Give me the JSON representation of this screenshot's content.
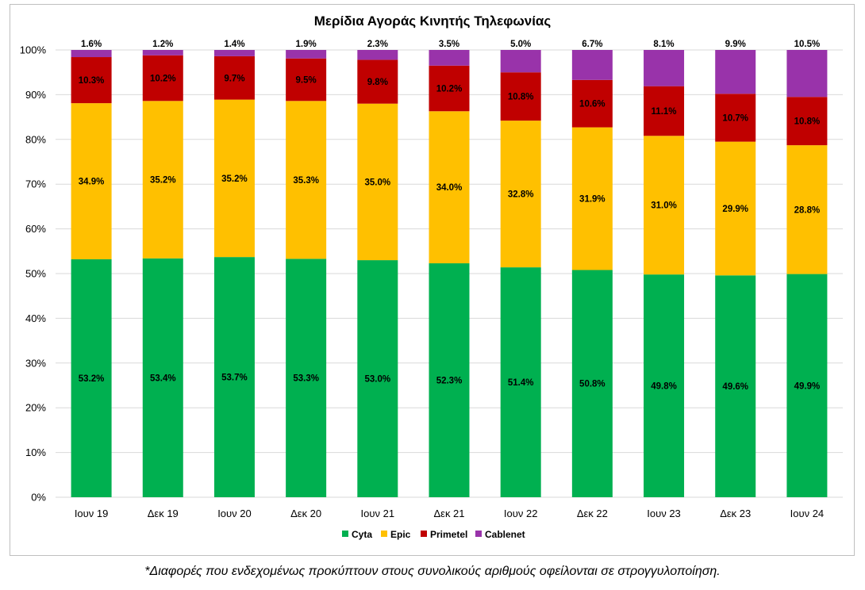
{
  "chart_data": {
    "type": "bar",
    "stacked": true,
    "title": "Μερίδια Αγοράς Κινητής Τηλεφωνίας",
    "xlabel": "",
    "ylabel": "",
    "ylim": [
      0,
      100
    ],
    "grid": true,
    "legend_position": "bottom",
    "y_ticks": [
      "0%",
      "10%",
      "20%",
      "30%",
      "40%",
      "50%",
      "60%",
      "70%",
      "80%",
      "90%",
      "100%"
    ],
    "categories": [
      "Ιουν 19",
      "Δεκ 19",
      "Ιουν 20",
      "Δεκ 20",
      "Ιουν 21",
      "Δεκ 21",
      "Ιουν 22",
      "Δεκ 22",
      "Ιουν 23",
      "Δεκ 23",
      "Ιουν 24"
    ],
    "series": [
      {
        "name": "Cyta",
        "color": "#00b050",
        "values": [
          53.2,
          53.4,
          53.7,
          53.3,
          53.0,
          52.3,
          51.4,
          50.8,
          49.8,
          49.6,
          49.9
        ],
        "labels": [
          "53.2%",
          "53.4%",
          "53.7%",
          "53.3%",
          "53.0%",
          "52.3%",
          "51.4%",
          "50.8%",
          "49.8%",
          "49.6%",
          "49.9%"
        ]
      },
      {
        "name": "Epic",
        "color": "#ffc000",
        "values": [
          34.9,
          35.2,
          35.2,
          35.3,
          35.0,
          34.0,
          32.8,
          31.9,
          31.0,
          29.9,
          28.8
        ],
        "labels": [
          "34.9%",
          "35.2%",
          "35.2%",
          "35.3%",
          "35.0%",
          "34.0%",
          "32.8%",
          "31.9%",
          "31.0%",
          "29.9%",
          "28.8%"
        ]
      },
      {
        "name": "Primetel",
        "color": "#c00000",
        "values": [
          10.3,
          10.2,
          9.7,
          9.5,
          9.8,
          10.2,
          10.8,
          10.6,
          11.1,
          10.7,
          10.8
        ],
        "labels": [
          "10.3%",
          "10.2%",
          "9.7%",
          "9.5%",
          "9.8%",
          "10.2%",
          "10.8%",
          "10.6%",
          "11.1%",
          "10.7%",
          "10.8%"
        ]
      },
      {
        "name": "Cablenet",
        "color": "#9933aa",
        "values": [
          1.6,
          1.2,
          1.4,
          1.9,
          2.3,
          3.5,
          5.0,
          6.7,
          8.1,
          9.9,
          10.5
        ],
        "labels": [
          "1.6%",
          "1.2%",
          "1.4%",
          "1.9%",
          "2.3%",
          "3.5%",
          "5.0%",
          "6.7%",
          "8.1%",
          "9.9%",
          "10.5%"
        ]
      }
    ]
  },
  "footnote": "*Διαφορές που ενδεχομένως προκύπτουν στους συνολικούς αριθμούς οφείλονται σε στρογγυλοποίηση."
}
